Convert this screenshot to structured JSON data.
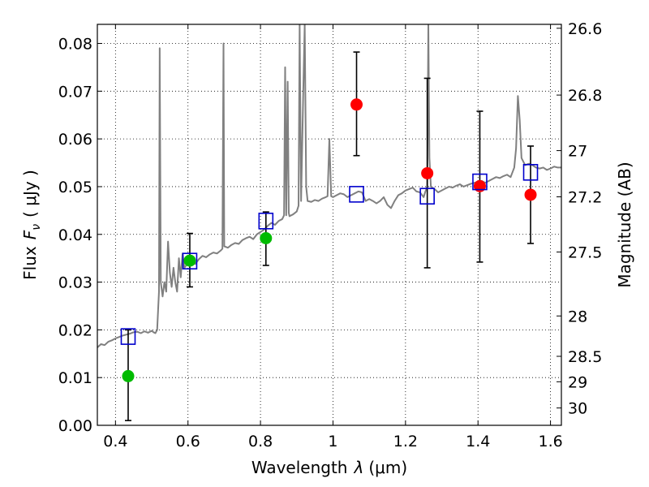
{
  "chart_data": {
    "type": "scatter",
    "xlabel_prefix": "Wavelength",
    "xlabel_symbol": "λ",
    "xlabel_unit": "(μm)",
    "ylabel_prefix": "Flux",
    "ylabel_symbol": "F",
    "ylabel_sub": "ν",
    "ylabel_unit": "( μJy )",
    "y2label": "Magnitude (AB)",
    "xlim": [
      0.35,
      1.63
    ],
    "ylim": [
      0.0,
      0.084
    ],
    "x_ticks": [
      {
        "value": 0.4,
        "label": "0.4"
      },
      {
        "value": 0.6,
        "label": "0.6"
      },
      {
        "value": 0.8,
        "label": "0.8"
      },
      {
        "value": 1.0,
        "label": "1"
      },
      {
        "value": 1.2,
        "label": "1.2"
      },
      {
        "value": 1.4,
        "label": "1.4"
      },
      {
        "value": 1.6,
        "label": "1.6"
      }
    ],
    "y_ticks": [
      {
        "value": 0.0,
        "label": "0.00"
      },
      {
        "value": 0.01,
        "label": "0.01"
      },
      {
        "value": 0.02,
        "label": "0.02"
      },
      {
        "value": 0.03,
        "label": "0.03"
      },
      {
        "value": 0.04,
        "label": "0.04"
      },
      {
        "value": 0.05,
        "label": "0.05"
      },
      {
        "value": 0.06,
        "label": "0.06"
      },
      {
        "value": 0.07,
        "label": "0.07"
      },
      {
        "value": 0.08,
        "label": "0.08"
      }
    ],
    "y2_ticks": [
      {
        "mag": 26.6,
        "label": "26.6"
      },
      {
        "mag": 26.8,
        "label": "26.8"
      },
      {
        "mag": 27.0,
        "label": "27"
      },
      {
        "mag": 27.2,
        "label": "27.2"
      },
      {
        "mag": 27.5,
        "label": "27.5"
      },
      {
        "mag": 28.0,
        "label": "28"
      },
      {
        "mag": 28.5,
        "label": "28.5"
      },
      {
        "mag": 29.0,
        "label": "29"
      },
      {
        "mag": 30.0,
        "label": "30"
      }
    ],
    "grid": true,
    "colors": {
      "spectrum": "#808080",
      "green": "#00bb00",
      "red": "#ff0000",
      "model": "#0000cc",
      "errorbar": "#000000"
    },
    "series": [
      {
        "name": "detections-green",
        "marker": "circle",
        "points": [
          {
            "x": 0.435,
            "y": 0.0103,
            "ylo": 0.001,
            "yhi": 0.02
          },
          {
            "x": 0.605,
            "y": 0.0345,
            "ylo": 0.029,
            "yhi": 0.0402
          },
          {
            "x": 0.815,
            "y": 0.0392,
            "ylo": 0.0335,
            "yhi": 0.0447
          }
        ]
      },
      {
        "name": "detections-red",
        "marker": "circle",
        "points": [
          {
            "x": 1.065,
            "y": 0.0672,
            "ylo": 0.0565,
            "yhi": 0.0782
          },
          {
            "x": 1.26,
            "y": 0.0528,
            "ylo": 0.033,
            "yhi": 0.0727
          },
          {
            "x": 1.405,
            "y": 0.0501,
            "ylo": 0.0342,
            "yhi": 0.0658
          },
          {
            "x": 1.545,
            "y": 0.0483,
            "ylo": 0.0381,
            "yhi": 0.0585
          }
        ]
      },
      {
        "name": "model-photometry",
        "marker": "square",
        "points": [
          {
            "x": 0.435,
            "y": 0.0186
          },
          {
            "x": 0.605,
            "y": 0.0344
          },
          {
            "x": 0.815,
            "y": 0.0428
          },
          {
            "x": 1.065,
            "y": 0.0484
          },
          {
            "x": 1.26,
            "y": 0.048
          },
          {
            "x": 1.405,
            "y": 0.051
          },
          {
            "x": 1.545,
            "y": 0.053
          }
        ]
      }
    ],
    "spectrum": [
      [
        0.35,
        0.0163
      ],
      [
        0.36,
        0.017
      ],
      [
        0.37,
        0.0168
      ],
      [
        0.38,
        0.0175
      ],
      [
        0.39,
        0.0178
      ],
      [
        0.4,
        0.0182
      ],
      [
        0.41,
        0.0185
      ],
      [
        0.42,
        0.0188
      ],
      [
        0.43,
        0.019
      ],
      [
        0.44,
        0.0192
      ],
      [
        0.45,
        0.0195
      ],
      [
        0.46,
        0.0196
      ],
      [
        0.47,
        0.0193
      ],
      [
        0.48,
        0.0197
      ],
      [
        0.49,
        0.0194
      ],
      [
        0.5,
        0.0198
      ],
      [
        0.505,
        0.0195
      ],
      [
        0.51,
        0.0193
      ],
      [
        0.515,
        0.02
      ],
      [
        0.52,
        0.028
      ],
      [
        0.522,
        0.079
      ],
      [
        0.525,
        0.03
      ],
      [
        0.53,
        0.027
      ],
      [
        0.535,
        0.03
      ],
      [
        0.54,
        0.028
      ],
      [
        0.545,
        0.0385
      ],
      [
        0.55,
        0.032
      ],
      [
        0.555,
        0.029
      ],
      [
        0.56,
        0.033
      ],
      [
        0.565,
        0.03
      ],
      [
        0.57,
        0.028
      ],
      [
        0.575,
        0.035
      ],
      [
        0.58,
        0.031
      ],
      [
        0.585,
        0.036
      ],
      [
        0.59,
        0.033
      ],
      [
        0.6,
        0.034
      ],
      [
        0.61,
        0.0345
      ],
      [
        0.62,
        0.0338
      ],
      [
        0.63,
        0.0348
      ],
      [
        0.64,
        0.0355
      ],
      [
        0.65,
        0.0352
      ],
      [
        0.66,
        0.0358
      ],
      [
        0.67,
        0.0362
      ],
      [
        0.68,
        0.036
      ],
      [
        0.69,
        0.0366
      ],
      [
        0.695,
        0.037
      ],
      [
        0.698,
        0.08
      ],
      [
        0.7,
        0.0375
      ],
      [
        0.71,
        0.0372
      ],
      [
        0.72,
        0.0378
      ],
      [
        0.73,
        0.0382
      ],
      [
        0.74,
        0.038
      ],
      [
        0.75,
        0.0388
      ],
      [
        0.76,
        0.0392
      ],
      [
        0.77,
        0.0395
      ],
      [
        0.78,
        0.039
      ],
      [
        0.79,
        0.04
      ],
      [
        0.8,
        0.0405
      ],
      [
        0.81,
        0.041
      ],
      [
        0.82,
        0.0418
      ],
      [
        0.83,
        0.0424
      ],
      [
        0.84,
        0.042
      ],
      [
        0.85,
        0.0428
      ],
      [
        0.86,
        0.0432
      ],
      [
        0.865,
        0.044
      ],
      [
        0.868,
        0.075
      ],
      [
        0.871,
        0.044
      ],
      [
        0.875,
        0.072
      ],
      [
        0.878,
        0.0445
      ],
      [
        0.88,
        0.0438
      ],
      [
        0.89,
        0.0442
      ],
      [
        0.9,
        0.0448
      ],
      [
        0.905,
        0.046
      ],
      [
        0.908,
        0.084
      ],
      [
        0.912,
        0.047
      ],
      [
        0.918,
        0.07
      ],
      [
        0.922,
        0.084
      ],
      [
        0.926,
        0.05
      ],
      [
        0.93,
        0.047
      ],
      [
        0.94,
        0.0468
      ],
      [
        0.95,
        0.0472
      ],
      [
        0.96,
        0.047
      ],
      [
        0.97,
        0.0475
      ],
      [
        0.98,
        0.0478
      ],
      [
        0.985,
        0.048
      ],
      [
        0.99,
        0.06
      ],
      [
        0.995,
        0.048
      ],
      [
        1.0,
        0.0478
      ],
      [
        1.01,
        0.0482
      ],
      [
        1.02,
        0.0486
      ],
      [
        1.03,
        0.0484
      ],
      [
        1.04,
        0.0478
      ],
      [
        1.05,
        0.0482
      ],
      [
        1.06,
        0.0486
      ],
      [
        1.07,
        0.049
      ],
      [
        1.08,
        0.0488
      ],
      [
        1.09,
        0.047
      ],
      [
        1.1,
        0.0474
      ],
      [
        1.11,
        0.047
      ],
      [
        1.12,
        0.0465
      ],
      [
        1.13,
        0.047
      ],
      [
        1.14,
        0.0478
      ],
      [
        1.15,
        0.0462
      ],
      [
        1.16,
        0.0455
      ],
      [
        1.17,
        0.047
      ],
      [
        1.18,
        0.0482
      ],
      [
        1.19,
        0.0486
      ],
      [
        1.2,
        0.0492
      ],
      [
        1.21,
        0.0495
      ],
      [
        1.22,
        0.0498
      ],
      [
        1.23,
        0.049
      ],
      [
        1.24,
        0.0488
      ],
      [
        1.25,
        0.0478
      ],
      [
        1.255,
        0.049
      ],
      [
        1.26,
        0.05
      ],
      [
        1.263,
        0.084
      ],
      [
        1.266,
        0.056
      ],
      [
        1.27,
        0.05
      ],
      [
        1.28,
        0.0495
      ],
      [
        1.29,
        0.0488
      ],
      [
        1.3,
        0.0492
      ],
      [
        1.31,
        0.0496
      ],
      [
        1.32,
        0.05
      ],
      [
        1.33,
        0.0498
      ],
      [
        1.34,
        0.0502
      ],
      [
        1.35,
        0.0505
      ],
      [
        1.36,
        0.05
      ],
      [
        1.37,
        0.0503
      ],
      [
        1.38,
        0.0506
      ],
      [
        1.39,
        0.0508
      ],
      [
        1.4,
        0.051
      ],
      [
        1.41,
        0.0512
      ],
      [
        1.42,
        0.0508
      ],
      [
        1.43,
        0.0512
      ],
      [
        1.44,
        0.0516
      ],
      [
        1.45,
        0.052
      ],
      [
        1.46,
        0.0518
      ],
      [
        1.47,
        0.0522
      ],
      [
        1.48,
        0.0525
      ],
      [
        1.49,
        0.052
      ],
      [
        1.5,
        0.054
      ],
      [
        1.505,
        0.058
      ],
      [
        1.51,
        0.069
      ],
      [
        1.515,
        0.064
      ],
      [
        1.52,
        0.056
      ],
      [
        1.53,
        0.0545
      ],
      [
        1.54,
        0.0548
      ],
      [
        1.55,
        0.0545
      ],
      [
        1.56,
        0.054
      ],
      [
        1.57,
        0.0538
      ],
      [
        1.58,
        0.054
      ],
      [
        1.59,
        0.0535
      ],
      [
        1.6,
        0.0538
      ],
      [
        1.61,
        0.0542
      ],
      [
        1.62,
        0.054
      ],
      [
        1.63,
        0.054
      ]
    ]
  }
}
